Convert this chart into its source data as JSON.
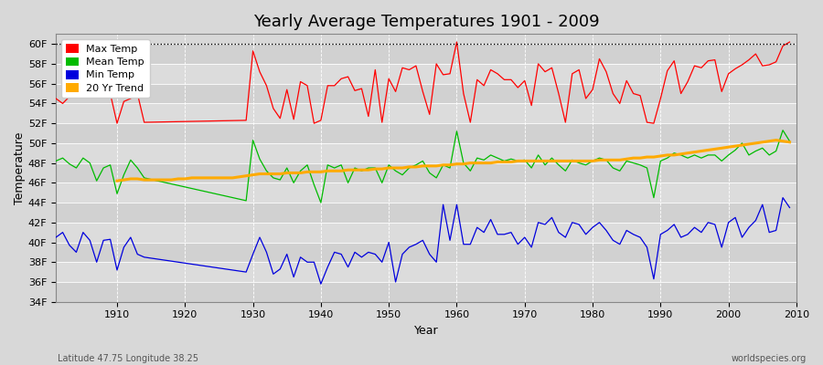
{
  "title": "Yearly Average Temperatures 1901 - 2009",
  "xlabel": "Year",
  "ylabel": "Temperature",
  "footnote_left": "Latitude 47.75 Longitude 38.25",
  "footnote_right": "worldspecies.org",
  "ylim": [
    34,
    61
  ],
  "yticks": [
    34,
    36,
    38,
    40,
    42,
    44,
    46,
    48,
    50,
    52,
    54,
    56,
    58,
    60
  ],
  "ytick_labels": [
    "34F",
    "36F",
    "38F",
    "40F",
    "42F",
    "44F",
    "46F",
    "48F",
    "50F",
    "52F",
    "54F",
    "56F",
    "58F",
    "60F"
  ],
  "year_start": 1901,
  "year_end": 2009,
  "bg_color": "#d8d8d8",
  "plot_bg_color": "#d8d8d8",
  "grid_color": "#ffffff",
  "max_color": "#ff0000",
  "mean_color": "#00bb00",
  "min_color": "#0000dd",
  "trend_color": "#ffaa00",
  "legend_labels": [
    "Max Temp",
    "Mean Temp",
    "Min Temp",
    "20 Yr Trend"
  ],
  "max_temps_years": [
    1901,
    1902,
    1903,
    1904,
    1905,
    1906,
    1907,
    1908,
    1909,
    1910,
    1911,
    1912,
    1913,
    1914,
    1929,
    1930,
    1931,
    1932,
    1933,
    1934,
    1935,
    1936,
    1937,
    1938,
    1939,
    1940,
    1941,
    1942,
    1943,
    1944,
    1945,
    1946,
    1947,
    1948,
    1949,
    1950,
    1951,
    1952,
    1953,
    1954,
    1955,
    1956,
    1957,
    1958,
    1959,
    1960,
    1961,
    1962,
    1963,
    1964,
    1965,
    1966,
    1967,
    1968,
    1969,
    1970,
    1971,
    1972,
    1973,
    1974,
    1975,
    1976,
    1977,
    1978,
    1979,
    1980,
    1981,
    1982,
    1983,
    1984,
    1985,
    1986,
    1987,
    1988,
    1989,
    1990,
    1991,
    1992,
    1993,
    1994,
    1995,
    1996,
    1997,
    1998,
    1999,
    2000,
    2001,
    2002,
    2003,
    2004,
    2005,
    2006,
    2007,
    2008,
    2009
  ],
  "max_temps": [
    54.5,
    54.0,
    54.7,
    55.2,
    55.0,
    55.5,
    54.8,
    55.3,
    55.0,
    52.0,
    54.2,
    54.5,
    55.0,
    52.1,
    52.3,
    59.3,
    57.2,
    55.8,
    53.5,
    52.5,
    55.4,
    52.4,
    56.2,
    55.8,
    52.0,
    52.3,
    55.8,
    55.8,
    56.5,
    56.7,
    55.3,
    55.5,
    52.7,
    57.4,
    52.1,
    56.5,
    55.2,
    57.6,
    57.4,
    57.8,
    55.2,
    52.9,
    58.0,
    56.9,
    57.0,
    60.2,
    55.0,
    52.1,
    56.4,
    55.8,
    57.4,
    57.0,
    56.4,
    56.4,
    55.6,
    56.3,
    53.8,
    58.0,
    57.2,
    57.6,
    55.0,
    52.1,
    57.0,
    57.4,
    54.5,
    55.4,
    58.5,
    57.2,
    55.0,
    54.0,
    56.3,
    55.0,
    54.8,
    52.1,
    52.0,
    54.5,
    57.3,
    58.3,
    55.0,
    56.2,
    57.8,
    57.6,
    58.3,
    58.4,
    55.2,
    57.0,
    57.5,
    57.9,
    58.4,
    59.0,
    57.8,
    57.9,
    58.2,
    59.8,
    60.2
  ],
  "mean_temps_years": [
    1901,
    1902,
    1903,
    1904,
    1905,
    1906,
    1907,
    1908,
    1909,
    1910,
    1911,
    1912,
    1913,
    1914,
    1929,
    1930,
    1931,
    1932,
    1933,
    1934,
    1935,
    1936,
    1937,
    1938,
    1939,
    1940,
    1941,
    1942,
    1943,
    1944,
    1945,
    1946,
    1947,
    1948,
    1949,
    1950,
    1951,
    1952,
    1953,
    1954,
    1955,
    1956,
    1957,
    1958,
    1959,
    1960,
    1961,
    1962,
    1963,
    1964,
    1965,
    1966,
    1967,
    1968,
    1969,
    1970,
    1971,
    1972,
    1973,
    1974,
    1975,
    1976,
    1977,
    1978,
    1979,
    1980,
    1981,
    1982,
    1983,
    1984,
    1985,
    1986,
    1987,
    1988,
    1989,
    1990,
    1991,
    1992,
    1993,
    1994,
    1995,
    1996,
    1997,
    1998,
    1999,
    2000,
    2001,
    2002,
    2003,
    2004,
    2005,
    2006,
    2007,
    2008,
    2009
  ],
  "mean_temps": [
    48.2,
    48.5,
    47.9,
    47.5,
    48.5,
    48.0,
    46.2,
    47.5,
    47.8,
    44.9,
    46.8,
    48.3,
    47.5,
    46.5,
    44.2,
    50.3,
    48.4,
    47.2,
    46.5,
    46.3,
    47.5,
    46.0,
    47.2,
    47.8,
    45.8,
    44.0,
    47.8,
    47.5,
    47.8,
    46.0,
    47.5,
    47.2,
    47.5,
    47.5,
    46.0,
    47.8,
    47.2,
    46.8,
    47.5,
    47.8,
    48.2,
    47.0,
    46.5,
    47.8,
    47.5,
    51.2,
    48.0,
    47.2,
    48.5,
    48.3,
    48.8,
    48.5,
    48.2,
    48.4,
    48.2,
    48.3,
    47.5,
    48.8,
    47.8,
    48.5,
    47.8,
    47.2,
    48.3,
    48.0,
    47.8,
    48.2,
    48.5,
    48.3,
    47.5,
    47.2,
    48.2,
    48.0,
    47.8,
    47.5,
    44.5,
    48.2,
    48.5,
    49.0,
    48.8,
    48.5,
    48.8,
    48.5,
    48.8,
    48.8,
    48.2,
    48.8,
    49.3,
    50.0,
    48.8,
    49.2,
    49.5,
    48.8,
    49.2,
    51.3,
    50.2
  ],
  "min_temps_years": [
    1901,
    1902,
    1903,
    1904,
    1905,
    1906,
    1907,
    1908,
    1909,
    1910,
    1911,
    1912,
    1913,
    1914,
    1929,
    1930,
    1931,
    1932,
    1933,
    1934,
    1935,
    1936,
    1937,
    1938,
    1939,
    1940,
    1941,
    1942,
    1943,
    1944,
    1945,
    1946,
    1947,
    1948,
    1949,
    1950,
    1951,
    1952,
    1953,
    1954,
    1955,
    1956,
    1957,
    1958,
    1959,
    1960,
    1961,
    1962,
    1963,
    1964,
    1965,
    1966,
    1967,
    1968,
    1969,
    1970,
    1971,
    1972,
    1973,
    1974,
    1975,
    1976,
    1977,
    1978,
    1979,
    1980,
    1981,
    1982,
    1983,
    1984,
    1985,
    1986,
    1987,
    1988,
    1989,
    1990,
    1991,
    1992,
    1993,
    1994,
    1995,
    1996,
    1997,
    1998,
    1999,
    2000,
    2001,
    2002,
    2003,
    2004,
    2005,
    2006,
    2007,
    2008,
    2009
  ],
  "min_temps": [
    40.5,
    41.0,
    39.7,
    39.0,
    41.0,
    40.2,
    38.0,
    40.2,
    40.3,
    37.2,
    39.5,
    40.5,
    38.8,
    38.5,
    37.0,
    38.8,
    40.5,
    39.0,
    36.8,
    37.3,
    38.8,
    36.5,
    38.5,
    38.0,
    38.0,
    35.8,
    37.5,
    39.0,
    38.8,
    37.5,
    39.0,
    38.5,
    39.0,
    38.8,
    38.0,
    40.0,
    36.0,
    38.8,
    39.5,
    39.8,
    40.2,
    38.8,
    38.0,
    43.8,
    40.2,
    43.8,
    39.8,
    39.8,
    41.5,
    41.0,
    42.3,
    40.8,
    40.8,
    41.0,
    39.8,
    40.5,
    39.5,
    42.0,
    41.8,
    42.5,
    41.0,
    40.5,
    42.0,
    41.8,
    40.8,
    41.5,
    42.0,
    41.2,
    40.2,
    39.8,
    41.2,
    40.8,
    40.5,
    39.5,
    36.3,
    40.8,
    41.2,
    41.8,
    40.5,
    40.8,
    41.5,
    41.0,
    42.0,
    41.8,
    39.5,
    42.0,
    42.5,
    40.5,
    41.5,
    42.2,
    43.8,
    41.0,
    41.2,
    44.5,
    43.5
  ],
  "trend_years": [
    1910,
    1911,
    1912,
    1913,
    1914,
    1915,
    1916,
    1917,
    1918,
    1919,
    1920,
    1921,
    1922,
    1923,
    1924,
    1925,
    1926,
    1927,
    1928,
    1929,
    1930,
    1931,
    1932,
    1933,
    1934,
    1935,
    1936,
    1937,
    1938,
    1939,
    1940,
    1941,
    1942,
    1943,
    1944,
    1945,
    1946,
    1947,
    1948,
    1949,
    1950,
    1951,
    1952,
    1953,
    1954,
    1955,
    1956,
    1957,
    1958,
    1959,
    1960,
    1961,
    1962,
    1963,
    1964,
    1965,
    1966,
    1967,
    1968,
    1969,
    1970,
    1971,
    1972,
    1973,
    1974,
    1975,
    1976,
    1977,
    1978,
    1979,
    1980,
    1981,
    1982,
    1983,
    1984,
    1985,
    1986,
    1987,
    1988,
    1989,
    1990,
    1991,
    1992,
    1993,
    1994,
    1995,
    1996,
    1997,
    1998,
    1999,
    2000,
    2001,
    2002,
    2003,
    2004,
    2005,
    2006,
    2007,
    2008,
    2009
  ],
  "trend_vals": [
    46.2,
    46.3,
    46.4,
    46.4,
    46.3,
    46.3,
    46.3,
    46.3,
    46.3,
    46.4,
    46.4,
    46.5,
    46.5,
    46.5,
    46.5,
    46.5,
    46.5,
    46.5,
    46.6,
    46.7,
    46.8,
    46.9,
    46.9,
    46.9,
    46.9,
    47.0,
    47.0,
    47.0,
    47.1,
    47.1,
    47.1,
    47.2,
    47.2,
    47.2,
    47.3,
    47.3,
    47.3,
    47.3,
    47.4,
    47.4,
    47.5,
    47.5,
    47.5,
    47.6,
    47.6,
    47.7,
    47.7,
    47.7,
    47.8,
    47.8,
    47.9,
    47.9,
    48.0,
    48.0,
    48.0,
    48.0,
    48.1,
    48.1,
    48.1,
    48.2,
    48.2,
    48.2,
    48.2,
    48.2,
    48.2,
    48.2,
    48.2,
    48.2,
    48.2,
    48.2,
    48.2,
    48.3,
    48.3,
    48.3,
    48.3,
    48.4,
    48.5,
    48.5,
    48.6,
    48.6,
    48.7,
    48.8,
    48.8,
    48.9,
    49.0,
    49.1,
    49.2,
    49.3,
    49.4,
    49.5,
    49.6,
    49.7,
    49.8,
    49.9,
    50.0,
    50.1,
    50.2,
    50.3,
    50.2,
    50.1
  ]
}
